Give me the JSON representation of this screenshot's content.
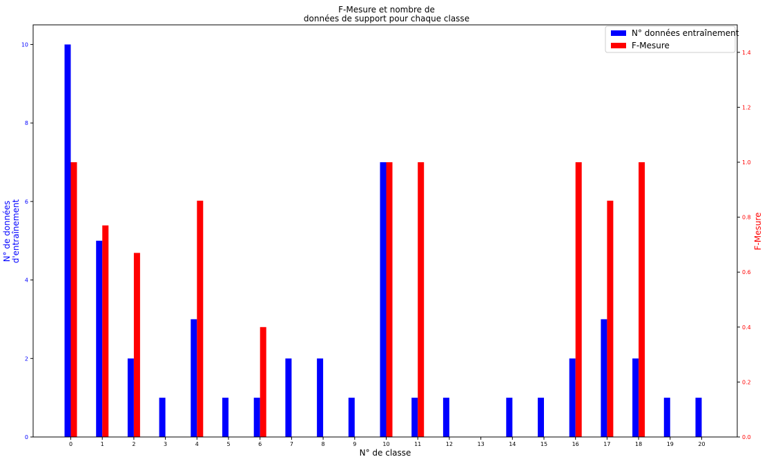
{
  "chart_data": {
    "type": "bar",
    "title_line1": "F-Mesure et nombre de",
    "title_line2": "données de support pour chaque classe",
    "xlabel": "N° de classe",
    "ylabel_left_line1": "N° de données",
    "ylabel_left_line2": "d'entraînement",
    "ylabel_right": "F-Mesure",
    "categories": [
      "0",
      "1",
      "2",
      "3",
      "4",
      "5",
      "6",
      "7",
      "8",
      "9",
      "10",
      "11",
      "12",
      "13",
      "14",
      "15",
      "16",
      "17",
      "18",
      "19",
      "20"
    ],
    "series": [
      {
        "name": "N° données entraînement",
        "axis": "left",
        "color": "#0000ff",
        "values": [
          10,
          5,
          2,
          1,
          3,
          1,
          1,
          2,
          2,
          1,
          7,
          1,
          1,
          0,
          1,
          1,
          2,
          3,
          2,
          1,
          1
        ]
      },
      {
        "name": "F-Mesure",
        "axis": "right",
        "color": "#ff0000",
        "values": [
          1.0,
          0.77,
          0.67,
          0,
          0.86,
          0,
          0.4,
          0,
          0,
          0,
          1.0,
          1.0,
          0,
          0,
          0,
          0,
          1.0,
          0.86,
          1.0,
          0,
          0
        ]
      }
    ],
    "ylim_left": [
      0,
      10.5
    ],
    "ylim_right": [
      0,
      1.5
    ],
    "yticks_left": [
      "0",
      "2",
      "4",
      "6",
      "8",
      "10"
    ],
    "yticks_right": [
      "0.0",
      "0.2",
      "0.4",
      "0.6",
      "0.8",
      "1.0",
      "1.2",
      "1.4"
    ],
    "left_tick_color": "#0000ff",
    "right_tick_color": "#ff0000",
    "grid": false,
    "legend_placement": "top-right"
  }
}
